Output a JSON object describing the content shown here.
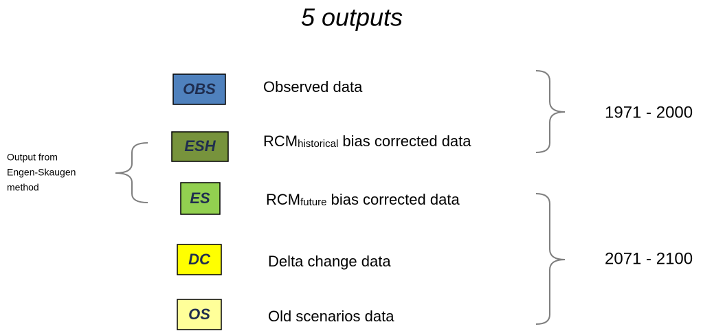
{
  "title": "5 outputs",
  "items": [
    {
      "label": "OBS",
      "description": {
        "main": "Observed data"
      }
    },
    {
      "label": "ESH",
      "description": {
        "main": "RCM",
        "sub": "historical",
        "rest": " bias corrected data"
      }
    },
    {
      "label": "ES",
      "description": {
        "main": "RCM",
        "sub": "future",
        "rest": " bias corrected data"
      }
    },
    {
      "label": "DC",
      "description": {
        "main": "Delta change data"
      }
    },
    {
      "label": "OS",
      "description": {
        "main": "Old scenarios data"
      }
    }
  ],
  "periods": [
    "1971 - 2000",
    "2071 - 2100"
  ],
  "side_note": [
    "Output from",
    "Engen-Skaugen",
    "method"
  ]
}
